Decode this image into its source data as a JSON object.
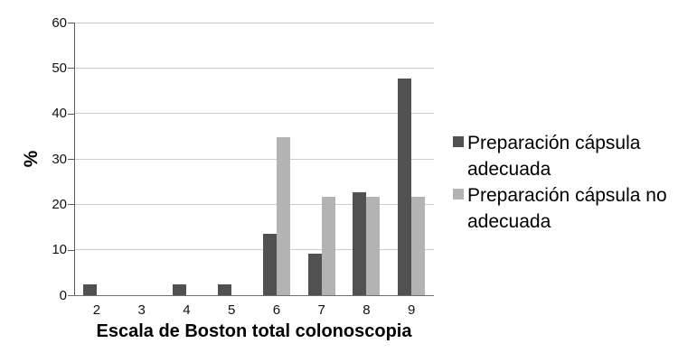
{
  "chart_data": {
    "type": "bar",
    "title": "",
    "categories": [
      "2",
      "3",
      "4",
      "5",
      "6",
      "7",
      "8",
      "9"
    ],
    "series": [
      {
        "name": "Preparación cápsula adecuada",
        "color": "#515151",
        "values": [
          2.3,
          0,
          2.3,
          2.3,
          13.6,
          9.1,
          22.7,
          47.7
        ]
      },
      {
        "name": "Preparación cápsula no adecuada",
        "color": "#b3b3b3",
        "values": [
          0,
          0,
          0,
          0,
          34.8,
          21.7,
          21.7,
          21.7
        ]
      }
    ],
    "xlabel": "Escala de Boston total colonoscopia",
    "ylabel": "%",
    "ylim": [
      0,
      60
    ],
    "yticks": [
      0,
      10,
      20,
      30,
      40,
      50,
      60
    ],
    "grid": true,
    "legend_position": "right",
    "axis_color": "#5a5a5a",
    "gridline_color": "#cccccc"
  }
}
